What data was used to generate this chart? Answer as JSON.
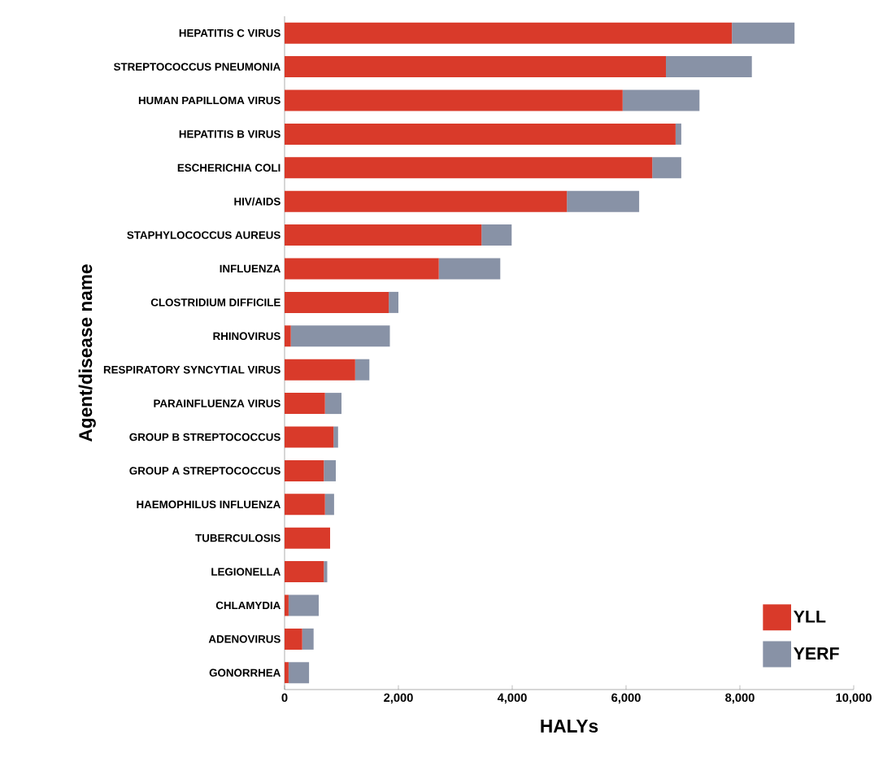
{
  "chart_data": {
    "type": "bar",
    "orientation": "horizontal",
    "stacked": true,
    "xlabel": "HALYs",
    "ylabel": "Agent/disease name",
    "categories": [
      "HEPATITIS C VIRUS",
      "STREPTOCOCCUS PNEUMONIA",
      "HUMAN PAPILLOMA VIRUS",
      "HEPATITIS B VIRUS",
      "ESCHERICHIA COLI",
      "HIV/AIDS",
      "STAPHYLOCOCCUS AUREUS",
      "INFLUENZA",
      "CLOSTRIDIUM DIFFICILE",
      "RHINOVIRUS",
      "RESPIRATORY SYNCYTIAL VIRUS",
      "PARAINFLUENZA VIRUS",
      "GROUP B STREPTOCOCCUS",
      "GROUP A STREPTOCOCCUS",
      "HAEMOPHILUS INFLUENZA",
      "TUBERCULOSIS",
      "LEGIONELLA",
      "CHLAMYDIA",
      "ADENOVIRUS",
      "GONORRHEA"
    ],
    "series": [
      {
        "name": "YLL",
        "color": "#d93a2a",
        "values": [
          7860,
          6700,
          5940,
          6870,
          6460,
          4960,
          3460,
          2710,
          1830,
          110,
          1240,
          710,
          860,
          690,
          710,
          800,
          690,
          70,
          310,
          70
        ]
      },
      {
        "name": "YERF",
        "color": "#8892a6",
        "values": [
          1100,
          1510,
          1350,
          100,
          510,
          1270,
          530,
          1080,
          170,
          1740,
          250,
          290,
          80,
          210,
          160,
          0,
          60,
          530,
          200,
          360
        ]
      }
    ],
    "xlim": [
      0,
      10000
    ],
    "xticks": [
      0,
      {
        "value": 2000,
        "label": "2,000"
      },
      {
        "value": 4000,
        "label": "4,000"
      },
      {
        "value": 6000,
        "label": "6,000"
      },
      {
        "value": 8000,
        "label": "8,000"
      },
      {
        "value": 10000,
        "label": "10,000"
      }
    ],
    "grid": false,
    "legend": "bottom right"
  }
}
